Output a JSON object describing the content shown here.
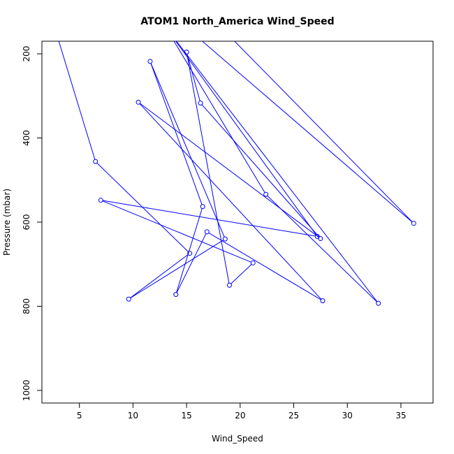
{
  "chart_data": {
    "type": "line",
    "title": "ATOM1 North_America Wind_Speed",
    "xlabel": "Wind_Speed",
    "ylabel": "Pressure (mbar)",
    "xlim": [
      1.5,
      38
    ],
    "ylim": [
      1030,
      170
    ],
    "y_reversed": true,
    "grid": false,
    "x_ticks": [
      5,
      10,
      15,
      20,
      25,
      30,
      35
    ],
    "y_ticks": [
      200,
      400,
      600,
      800,
      1000
    ],
    "series": [
      {
        "color": "#0000ff",
        "points": [
          {
            "x": 2.0,
            "y": 80,
            "marker": false
          },
          {
            "x": 6.5,
            "y": 456
          },
          {
            "x": 15.3,
            "y": 674
          },
          {
            "x": 9.6,
            "y": 783
          },
          {
            "x": 18.6,
            "y": 640
          },
          {
            "x": 11.6,
            "y": 218
          },
          {
            "x": 16.5,
            "y": 563
          },
          {
            "x": 14.0,
            "y": 772
          },
          {
            "x": 16.9,
            "y": 623
          },
          {
            "x": 27.7,
            "y": 787
          },
          {
            "x": 10.5,
            "y": 315
          },
          {
            "x": 27.5,
            "y": 639
          },
          {
            "x": 16.3,
            "y": 317
          },
          {
            "x": 15.0,
            "y": 196
          },
          {
            "x": 19.0,
            "y": 750
          },
          {
            "x": 21.2,
            "y": 697
          },
          {
            "x": 7.0,
            "y": 548
          },
          {
            "x": 27.2,
            "y": 634
          },
          {
            "x": 13.0,
            "y": 135,
            "marker": false
          },
          {
            "x": 32.9,
            "y": 793
          },
          {
            "x": 22.4,
            "y": 534
          },
          {
            "x": 11.0,
            "y": 50,
            "marker": false
          },
          {
            "x": 36.2,
            "y": 603
          },
          {
            "x": 16.0,
            "y": 80,
            "marker": false
          }
        ]
      }
    ]
  }
}
